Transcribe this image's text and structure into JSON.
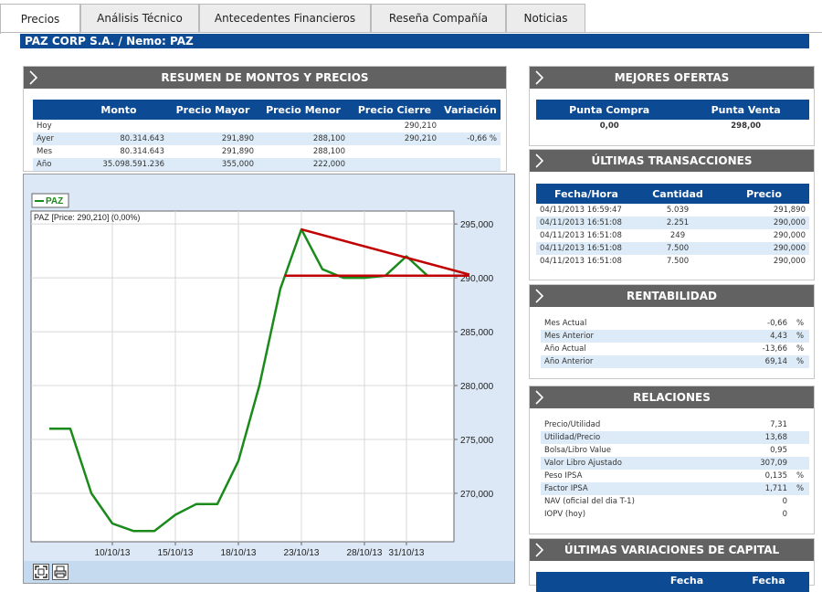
{
  "tabs": [
    "Precios",
    "Análisis Técnico",
    "Antecedentes Financieros",
    "Reseña Compañía",
    "Noticias"
  ],
  "title": "PAZ CORP S.A. / Nemo: PAZ",
  "resumen": {
    "header": "RESUMEN DE MONTOS Y PRECIOS",
    "columns": [
      "",
      "Monto",
      "Precio Mayor",
      "Precio Menor",
      "Precio Cierre",
      "Variación"
    ],
    "rows": [
      [
        "Hoy",
        "",
        "",
        "",
        "290,210",
        ""
      ],
      [
        "Ayer",
        "80.314.643",
        "291,890",
        "288,100",
        "290,210",
        "-0,66 %"
      ],
      [
        "Mes",
        "80.314.643",
        "291,890",
        "288,100",
        "",
        ""
      ],
      [
        "Año",
        "35.098.591.236",
        "355,000",
        "222,000",
        "",
        ""
      ]
    ]
  },
  "mejores": {
    "header": "MEJORES OFERTAS",
    "columns": [
      "Punta Compra",
      "Punta Venta"
    ],
    "values": [
      "0,00",
      "298,00"
    ]
  },
  "transacciones": {
    "header": "ÚLTIMAS TRANSACCIONES",
    "columns": [
      "Fecha/Hora",
      "Cantidad",
      "Precio"
    ],
    "rows": [
      [
        "04/11/2013 16:59:47",
        "5.039",
        "291,890"
      ],
      [
        "04/11/2013 16:51:08",
        "2.251",
        "290,000"
      ],
      [
        "04/11/2013 16:51:08",
        "249",
        "290,000"
      ],
      [
        "04/11/2013 16:51:08",
        "7.500",
        "290,000"
      ],
      [
        "04/11/2013 16:51:08",
        "7.500",
        "290,000"
      ]
    ]
  },
  "rentabilidad": {
    "header": "RENTABILIDAD",
    "rows": [
      [
        "Mes Actual",
        "-0,66",
        "%"
      ],
      [
        "Mes Anterior",
        "4,43",
        "%"
      ],
      [
        "Año Actual",
        "-13,66",
        "%"
      ],
      [
        "Año Anterior",
        "69,14",
        "%"
      ]
    ]
  },
  "relaciones": {
    "header": "RELACIONES",
    "rows": [
      [
        "Precio/Utilidad",
        "7,31",
        ""
      ],
      [
        "Utilidad/Precio",
        "13,68",
        ""
      ],
      [
        "Bolsa/Libro Value",
        "0,95",
        ""
      ],
      [
        "Valor Libro Ajustado",
        "307,09",
        ""
      ],
      [
        "Peso IPSA",
        "0,135",
        "%"
      ],
      [
        "Factor IPSA",
        "1,711",
        "%"
      ],
      [
        "NAV (oficial del dia T-1)",
        "0",
        ""
      ],
      [
        "IOPV (hoy)",
        "0",
        ""
      ]
    ]
  },
  "variaciones": {
    "header": "ÚLTIMAS VARIACIONES DE CAPITAL",
    "columns": [
      "Fecha",
      "Fecha"
    ]
  },
  "chart_data": {
    "type": "line",
    "legend": "PAZ",
    "info": "PAZ [Price: 290,210] (0,00%)",
    "x_ticks": [
      "10/10/13",
      "15/10/13",
      "18/10/13",
      "23/10/13",
      "28/10/13",
      "31/10/13"
    ],
    "x_tick_index": [
      3,
      6,
      9,
      12,
      15,
      17
    ],
    "y_ticks": [
      "295,000",
      "290,000",
      "285,000",
      "280,000",
      "275,000",
      "270,000"
    ],
    "y_tick_values": [
      295000,
      290000,
      285000,
      280000,
      275000,
      270000
    ],
    "ylim": [
      265500,
      296200
    ],
    "series": [
      {
        "name": "PAZ",
        "values": [
          276000,
          276000,
          270000,
          267200,
          266500,
          266500,
          268000,
          269000,
          269000,
          273000,
          280000,
          289000,
          294500,
          290800,
          290000,
          290000,
          290200,
          292000,
          290200,
          290200
        ]
      }
    ],
    "trendlines": [
      {
        "from": [
          12,
          294500
        ],
        "to": [
          20,
          290300
        ]
      },
      {
        "from": [
          11.2,
          290200
        ],
        "to": [
          20,
          290200
        ]
      }
    ],
    "colors": {
      "series": "#1a8a1a",
      "trend": "#c00000"
    }
  }
}
